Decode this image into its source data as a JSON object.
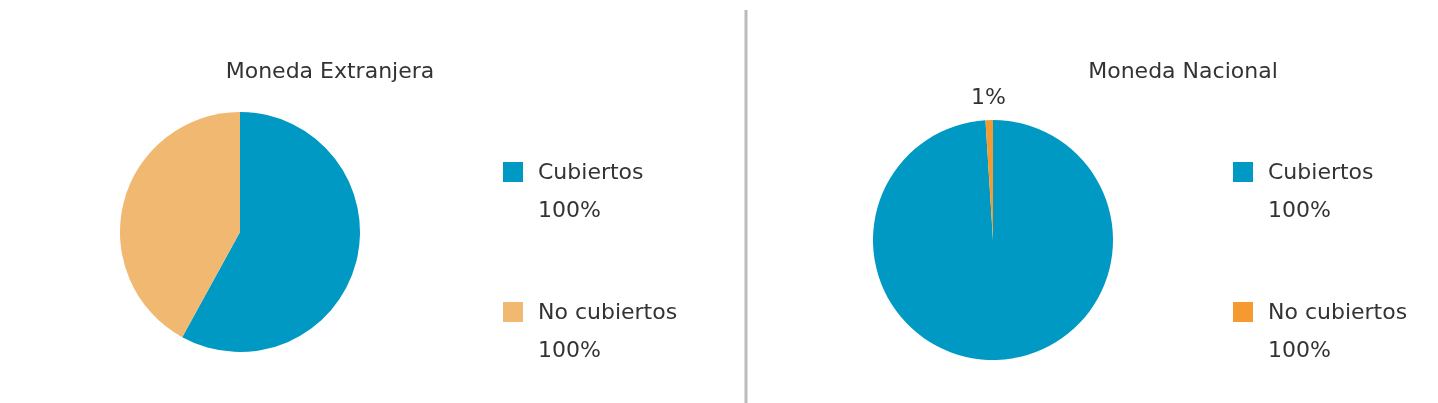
{
  "chart_data": [
    {
      "type": "pie",
      "title": "Moneda Extranjera",
      "categories": [
        "Cubiertos",
        "No cubiertos"
      ],
      "values": [
        58,
        42
      ],
      "colors": [
        "#0099c4",
        "#f0b870"
      ],
      "legend": "right",
      "annotations": [
        "100%",
        "100%"
      ]
    },
    {
      "type": "pie",
      "title": "Moneda Nacional",
      "categories": [
        "Cubiertos",
        "No cubiertos"
      ],
      "values": [
        99,
        1
      ],
      "colors": [
        "#0099c4",
        "#f59a30"
      ],
      "value_labels": [
        null,
        "1%"
      ],
      "legend": "right",
      "annotations": [
        "100%",
        "100%"
      ]
    }
  ]
}
